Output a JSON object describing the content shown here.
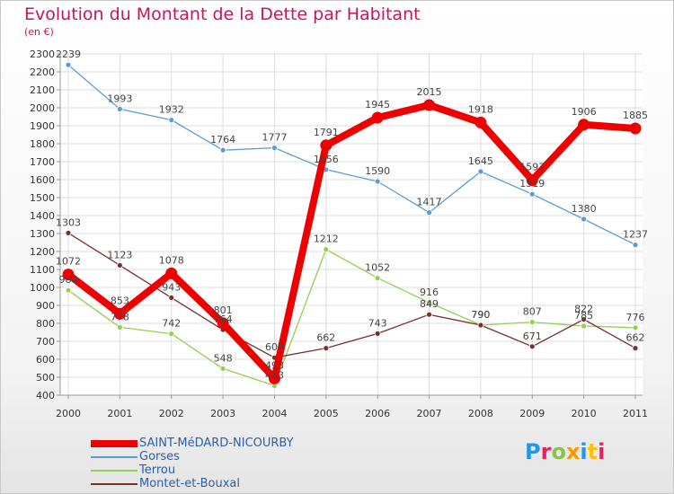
{
  "title": "Evolution du Montant de la Dette par Habitant",
  "subtitle": "(en €)",
  "logo": {
    "text": "Proxiti",
    "colors": [
      "#2196f3",
      "#e91e63",
      "#8bc34a",
      "#ff9800",
      "#2196f3",
      "#ffc107",
      "#e91e63"
    ]
  },
  "chart_data": {
    "type": "line",
    "title": "Evolution du Montant de la Dette par Habitant",
    "subtitle": "(en €)",
    "xlabel": "",
    "ylabel": "",
    "x": [
      "2000",
      "2001",
      "2002",
      "2003",
      "2004",
      "2005",
      "2006",
      "2007",
      "2008",
      "2009",
      "2010",
      "2011"
    ],
    "ylim": [
      400,
      2300
    ],
    "yticks": [
      "400",
      "500",
      "600",
      "700",
      "800",
      "900",
      "1000",
      "1100",
      "1200",
      "1300",
      "1400",
      "1500",
      "1600",
      "1700",
      "1800",
      "1900",
      "2000",
      "2100",
      "2200",
      "2300"
    ],
    "grid": true,
    "legend": "bottom-left",
    "series": [
      {
        "name": "SAINT-MéDARD-NICOURBY",
        "color": "#ee0000",
        "values": [
          1072,
          853,
          1078,
          801,
          493,
          1791,
          1945,
          2015,
          1918,
          1597,
          1906,
          1885
        ],
        "labels": [
          "1072",
          "853",
          "1078",
          "801",
          "493",
          "1791",
          "1945",
          "2015",
          "1918",
          "1597",
          "1906",
          "1885"
        ]
      },
      {
        "name": "Gorses",
        "color": "#5b9bd5",
        "values": [
          2239,
          1993,
          1932,
          1764,
          1777,
          1656,
          1590,
          1417,
          1645,
          1519,
          1380,
          1237
        ],
        "labels": [
          "2239",
          "1993",
          "1932",
          "1764",
          "1777",
          "1656",
          "1590",
          "1417",
          "1645",
          "1519",
          "1380",
          "1237"
        ]
      },
      {
        "name": "Terrou",
        "color": "#92d050",
        "values": [
          984,
          778,
          742,
          548,
          453,
          1212,
          1052,
          916,
          790,
          807,
          785,
          776
        ],
        "labels": [
          "984",
          "778",
          "742",
          "548",
          "453",
          "1212",
          "1052",
          "916",
          "790",
          "807",
          "785",
          "776"
        ]
      },
      {
        "name": "Montet-et-Bouxal",
        "color": "#7a2e2e",
        "values": [
          1303,
          1123,
          943,
          764,
          609,
          662,
          743,
          849,
          790,
          671,
          822,
          662
        ],
        "labels": [
          "1303",
          "1123",
          "943",
          "764",
          "609",
          "662",
          "743",
          "849",
          "790",
          "671",
          "822",
          "662"
        ]
      }
    ]
  }
}
